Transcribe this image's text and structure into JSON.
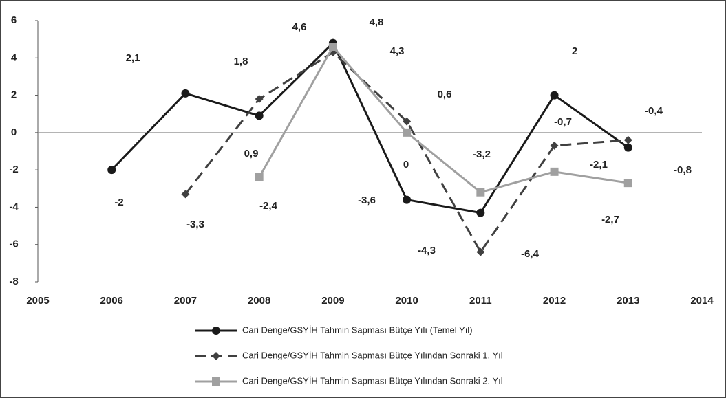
{
  "chart_data": {
    "type": "line",
    "x": [
      2006,
      2007,
      2008,
      2009,
      2010,
      2011,
      2012,
      2013
    ],
    "series": [
      {
        "name": "Cari Denge/GSYİH Tahmin Sapması Bütçe Yılı (Temel Yıl)",
        "color": "#1a1a1a",
        "style": "solid",
        "marker": "circle",
        "values": [
          -2,
          2.1,
          0.9,
          4.8,
          -3.6,
          -4.3,
          2,
          -0.8
        ],
        "value_labels": [
          "-2",
          "2,1",
          "0,9",
          "4,8",
          "-3,6",
          "-4,3",
          "2",
          "-0,8"
        ]
      },
      {
        "name": "Cari Denge/GSYİH Tahmin Sapması Bütçe Yılından Sonraki 1. Yıl",
        "color": "#404040",
        "style": "dashed",
        "marker": "diamond",
        "values": [
          null,
          -3.3,
          1.8,
          4.3,
          0.6,
          -6.4,
          -0.7,
          -0.4
        ],
        "value_labels": [
          null,
          "-3,3",
          "1,8",
          "4,3",
          "0,6",
          "-6,4",
          "-0,7",
          "-0,4"
        ]
      },
      {
        "name": "Cari Denge/GSYİH Tahmin Sapması Bütçe Yılından Sonraki 2. Yıl",
        "color": "#a0a0a0",
        "style": "solid",
        "marker": "square",
        "values": [
          null,
          null,
          -2.4,
          4.6,
          0,
          -3.2,
          -2.1,
          -2.7
        ],
        "value_labels": [
          null,
          null,
          "-2,4",
          "4,6",
          "0",
          "-3,2",
          "-2,1",
          "-2,7"
        ]
      }
    ],
    "xlim": [
      2005,
      2014
    ],
    "xticks": [
      2005,
      2006,
      2007,
      2008,
      2009,
      2010,
      2011,
      2012,
      2013,
      2014
    ],
    "ylim": [
      -8,
      6
    ],
    "yticks": [
      -8,
      -6,
      -4,
      -2,
      0,
      2,
      4,
      6
    ],
    "grid": false,
    "legend": "bottom"
  }
}
